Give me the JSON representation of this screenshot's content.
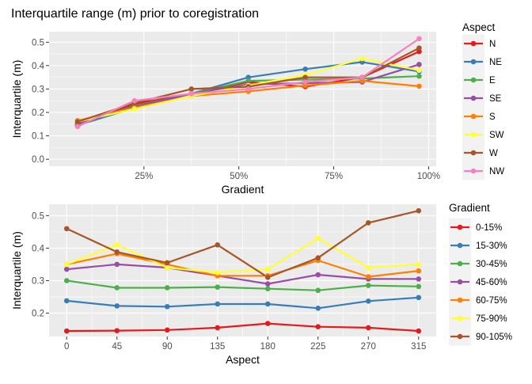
{
  "chart_data": [
    {
      "type": "line",
      "title": "Interquartile range (m) prior to coregistration",
      "xlabel": "Gradient",
      "ylabel": "Interquartile (m)",
      "x": [
        7.5,
        22.5,
        37.5,
        52.5,
        67.5,
        82.5,
        97.5
      ],
      "xlim": [
        0,
        102
      ],
      "x_ticks": [
        25,
        50,
        75,
        100
      ],
      "x_tick_labels": [
        "25%",
        "50%",
        "75%",
        "100%"
      ],
      "ylim": [
        -0.03,
        0.545
      ],
      "y_ticks": [
        0.0,
        0.1,
        0.2,
        0.3,
        0.4,
        0.5
      ],
      "y_tick_labels": [
        "0.0",
        "0.1",
        "0.2",
        "0.3",
        "0.4",
        "0.5"
      ],
      "grid": true,
      "legend_title": "Aspect",
      "legend_position": "right",
      "series": [
        {
          "name": "N",
          "color": "#E41A1C",
          "values": [
            0.145,
            0.236,
            0.28,
            0.33,
            0.31,
            0.35,
            0.46
          ]
        },
        {
          "name": "NE",
          "color": "#377EB8",
          "values": [
            0.145,
            0.22,
            0.28,
            0.35,
            0.385,
            0.415,
            0.375
          ]
        },
        {
          "name": "E",
          "color": "#4DAF4A",
          "values": [
            0.15,
            0.228,
            0.28,
            0.335,
            0.34,
            0.345,
            0.355
          ]
        },
        {
          "name": "SE",
          "color": "#984EA3",
          "values": [
            0.152,
            0.225,
            0.28,
            0.32,
            0.325,
            0.33,
            0.405
          ]
        },
        {
          "name": "S",
          "color": "#FF7F00",
          "values": [
            0.165,
            0.22,
            0.27,
            0.29,
            0.315,
            0.335,
            0.312
          ]
        },
        {
          "name": "SW",
          "color": "#FFFF33",
          "values": [
            0.16,
            0.215,
            0.27,
            0.315,
            0.36,
            0.43,
            0.38
          ]
        },
        {
          "name": "W",
          "color": "#A65628",
          "values": [
            0.16,
            0.24,
            0.3,
            0.31,
            0.35,
            0.35,
            0.475
          ]
        },
        {
          "name": "NW",
          "color": "#F781BF",
          "values": [
            0.14,
            0.25,
            0.28,
            0.3,
            0.33,
            0.35,
            0.515
          ]
        }
      ]
    },
    {
      "type": "line",
      "xlabel": "Aspect",
      "ylabel": "Interquartile (m)",
      "x": [
        0,
        45,
        90,
        135,
        180,
        225,
        270,
        315
      ],
      "x_tick_labels": [
        "0",
        "45",
        "90",
        "135",
        "180",
        "225",
        "270",
        "315"
      ],
      "xlim": [
        -15.75,
        330.75
      ],
      "ylim": [
        0.128,
        0.535
      ],
      "y_ticks": [
        0.2,
        0.3,
        0.4,
        0.5
      ],
      "y_tick_labels": [
        "0.2",
        "0.3",
        "0.4",
        "0.5"
      ],
      "grid": true,
      "legend_title": "Gradient",
      "legend_position": "right",
      "series": [
        {
          "name": "0-15%",
          "color": "#E41A1C",
          "values": [
            0.145,
            0.146,
            0.148,
            0.155,
            0.168,
            0.158,
            0.155,
            0.145
          ]
        },
        {
          "name": "15-30%",
          "color": "#377EB8",
          "values": [
            0.238,
            0.222,
            0.22,
            0.228,
            0.228,
            0.215,
            0.237,
            0.248
          ]
        },
        {
          "name": "30-45%",
          "color": "#4DAF4A",
          "values": [
            0.3,
            0.278,
            0.278,
            0.28,
            0.275,
            0.27,
            0.285,
            0.282
          ]
        },
        {
          "name": "45-60%",
          "color": "#984EA3",
          "values": [
            0.335,
            0.35,
            0.34,
            0.315,
            0.29,
            0.318,
            0.305,
            0.305
          ]
        },
        {
          "name": "60-75%",
          "color": "#FF7F00",
          "values": [
            0.35,
            0.383,
            0.35,
            0.315,
            0.315,
            0.362,
            0.312,
            0.33
          ]
        },
        {
          "name": "75-90%",
          "color": "#FFFF33",
          "values": [
            0.35,
            0.41,
            0.34,
            0.325,
            0.335,
            0.43,
            0.34,
            0.35
          ]
        },
        {
          "name": "90-105%",
          "color": "#A65628",
          "values": [
            0.46,
            0.388,
            0.355,
            0.41,
            0.31,
            0.37,
            0.478,
            0.515
          ]
        }
      ]
    }
  ]
}
